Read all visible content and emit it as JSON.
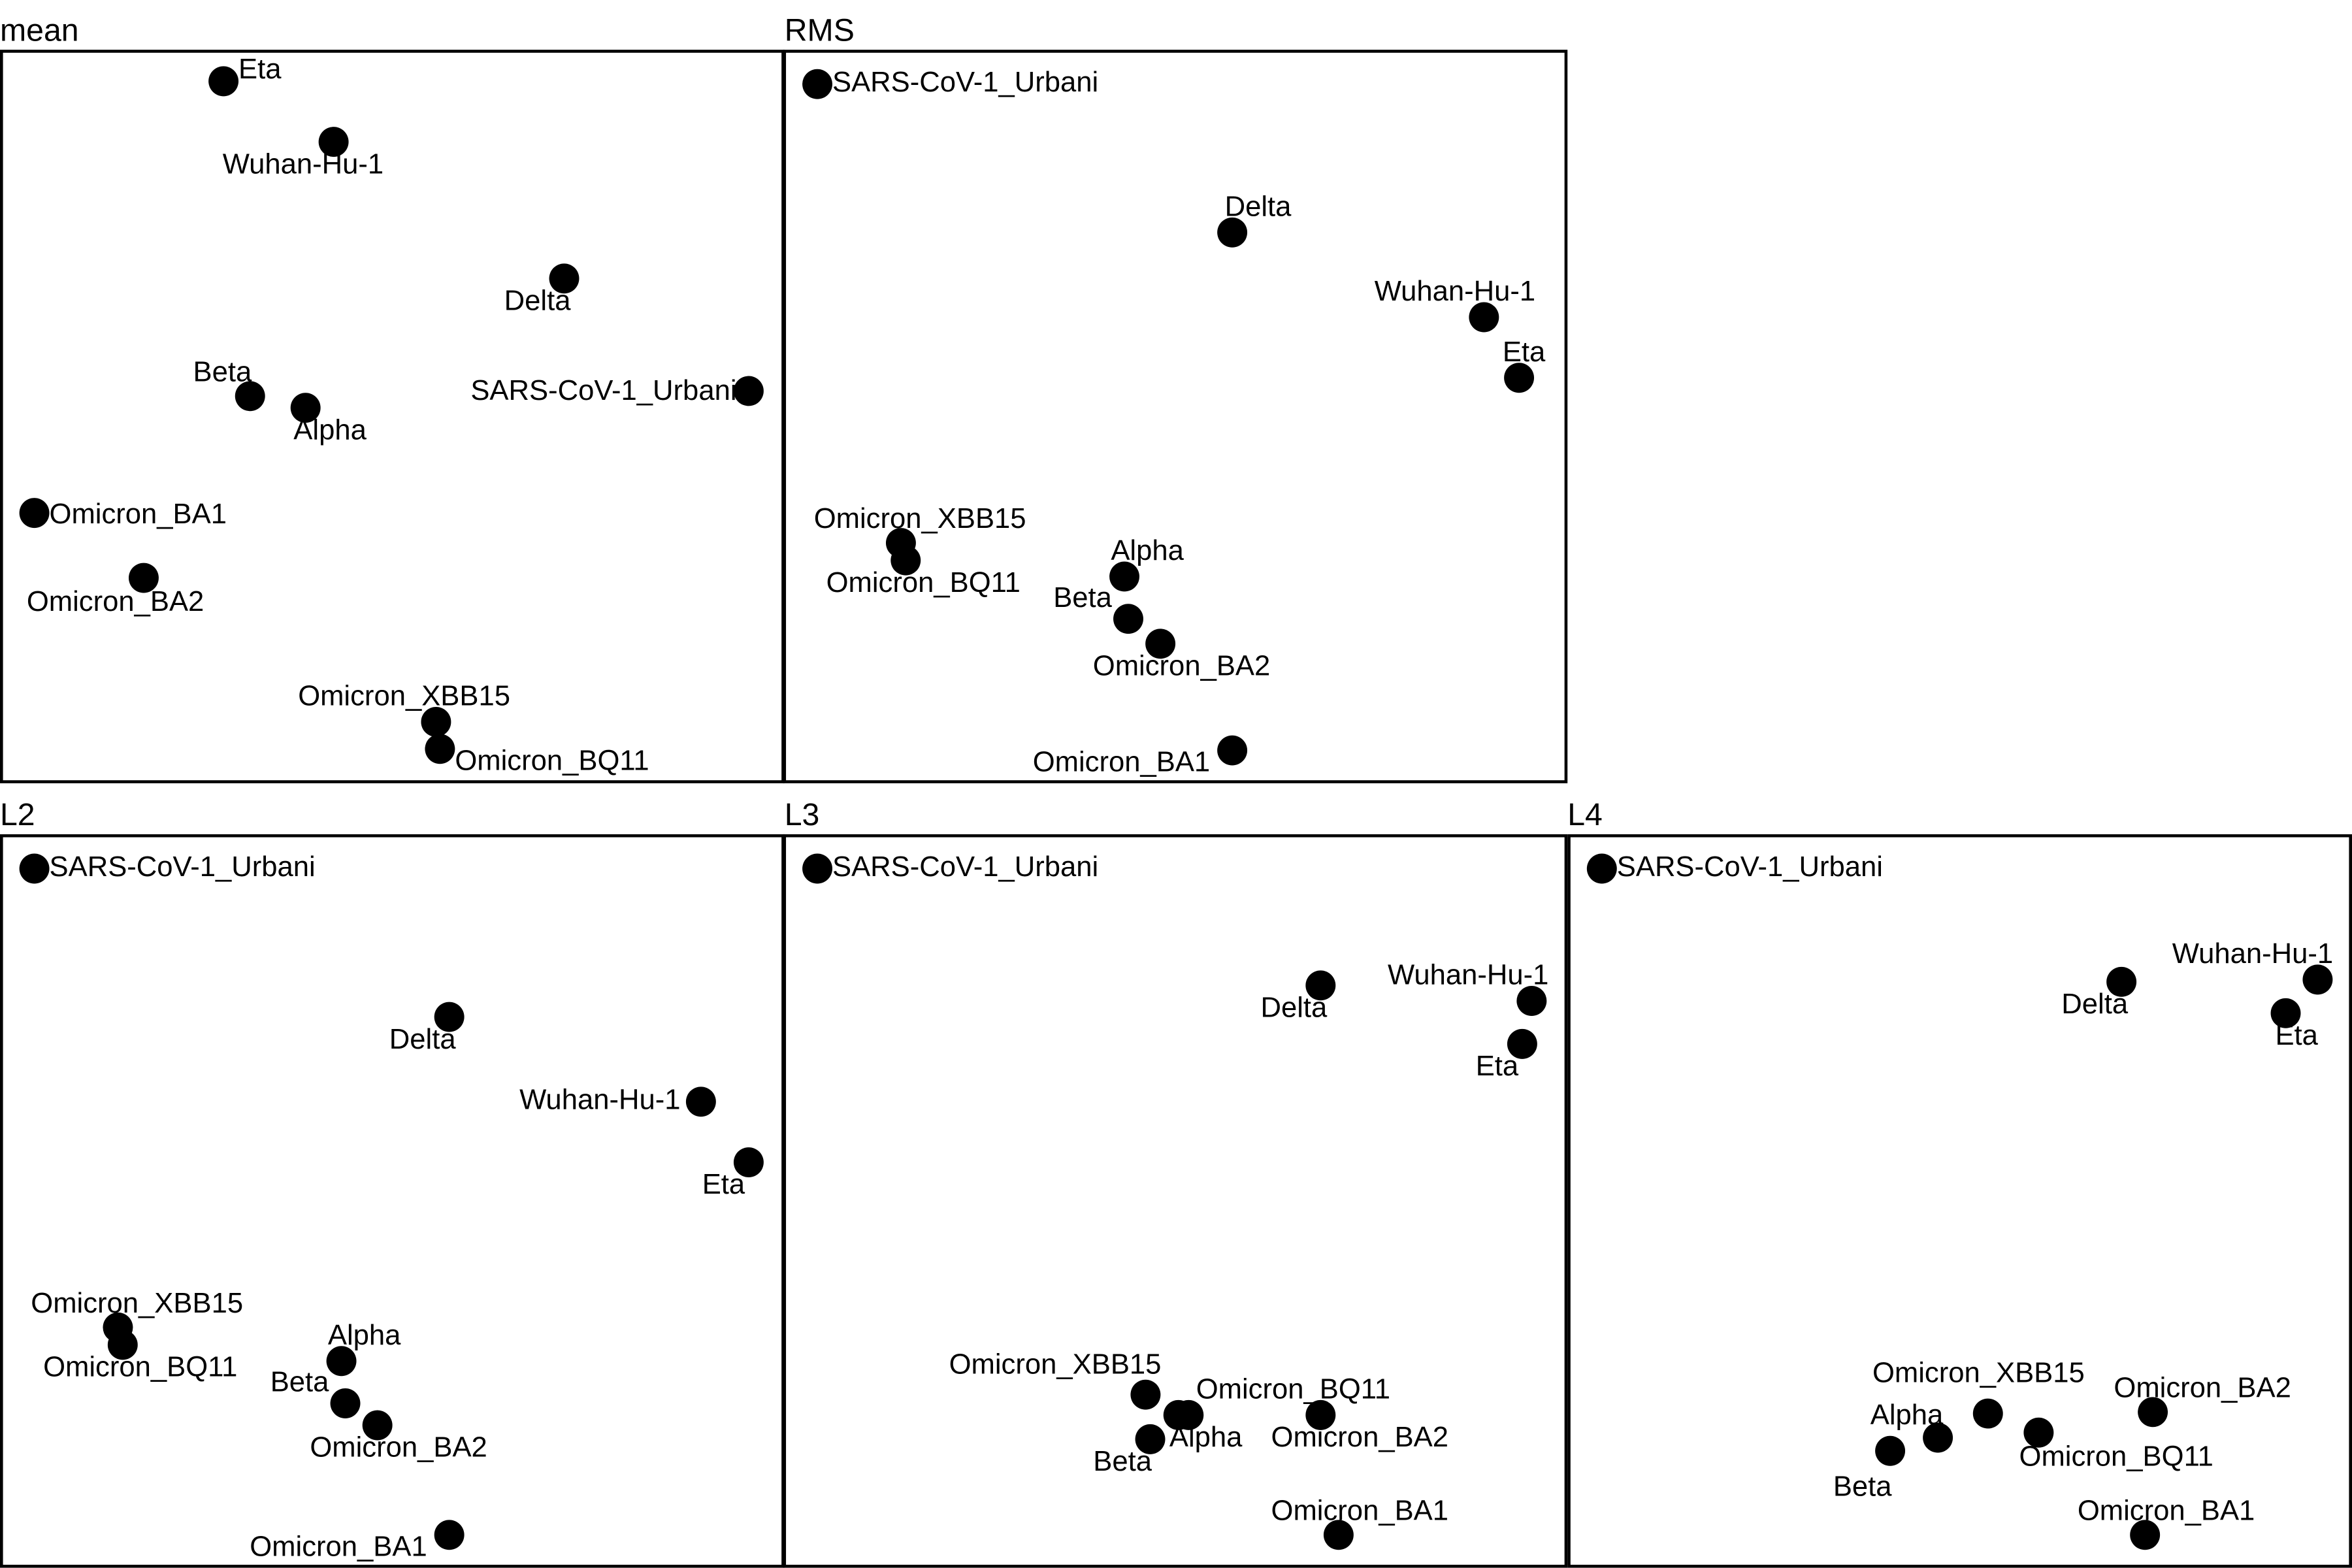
{
  "chart_data": [
    {
      "type": "scatter",
      "title": "mean",
      "xlim": [
        0,
        100
      ],
      "ylim": [
        0,
        100
      ],
      "grid": false,
      "points": [
        {
          "label": "Eta",
          "x": 28.4,
          "y": 95.9
        },
        {
          "label": "Wuhan-Hu-1",
          "x": 42.5,
          "y": 87.6
        },
        {
          "label": "Delta",
          "x": 72.0,
          "y": 68.9
        },
        {
          "label": "Beta",
          "x": 31.8,
          "y": 52.8
        },
        {
          "label": "Alpha",
          "x": 38.9,
          "y": 51.2
        },
        {
          "label": "SARS-CoV-1_Urbani",
          "x": 95.6,
          "y": 53.5
        },
        {
          "label": "Omicron_BA1",
          "x": 4.2,
          "y": 36.8
        },
        {
          "label": "Omicron_BA2",
          "x": 18.2,
          "y": 27.9
        },
        {
          "label": "Omicron_XBB15",
          "x": 55.6,
          "y": 8.2
        },
        {
          "label": "Omicron_BQ11",
          "x": 56.1,
          "y": 4.5
        }
      ]
    },
    {
      "type": "scatter",
      "title": "RMS",
      "xlim": [
        0,
        100
      ],
      "ylim": [
        0,
        100
      ],
      "grid": false,
      "points": [
        {
          "label": "SARS-CoV-1_Urbani",
          "x": 4.2,
          "y": 95.5
        },
        {
          "label": "Delta",
          "x": 57.3,
          "y": 75.2
        },
        {
          "label": "Wuhan-Hu-1",
          "x": 89.5,
          "y": 63.6
        },
        {
          "label": "Eta",
          "x": 94.0,
          "y": 55.3
        },
        {
          "label": "Omicron_XBB15",
          "x": 14.9,
          "y": 32.7
        },
        {
          "label": "Omicron_BQ11",
          "x": 15.5,
          "y": 30.3
        },
        {
          "label": "Alpha",
          "x": 43.5,
          "y": 28.1
        },
        {
          "label": "Beta",
          "x": 44.0,
          "y": 22.3
        },
        {
          "label": "Omicron_BA2",
          "x": 48.1,
          "y": 18.9
        },
        {
          "label": "Omicron_BA1",
          "x": 57.3,
          "y": 4.3
        }
      ]
    },
    {
      "type": "scatter",
      "title": "L2",
      "xlim": [
        0,
        100
      ],
      "ylim": [
        0,
        100
      ],
      "grid": false,
      "points": [
        {
          "label": "SARS-CoV-1_Urbani",
          "x": 4.2,
          "y": 95.5
        },
        {
          "label": "Delta",
          "x": 57.3,
          "y": 75.2
        },
        {
          "label": "Wuhan-Hu-1",
          "x": 89.5,
          "y": 63.6
        },
        {
          "label": "Eta",
          "x": 95.6,
          "y": 55.3
        },
        {
          "label": "Omicron_XBB15",
          "x": 14.9,
          "y": 32.7
        },
        {
          "label": "Omicron_BQ11",
          "x": 15.5,
          "y": 30.3
        },
        {
          "label": "Alpha",
          "x": 43.5,
          "y": 28.1
        },
        {
          "label": "Beta",
          "x": 44.0,
          "y": 22.3
        },
        {
          "label": "Omicron_BA2",
          "x": 48.1,
          "y": 19.3
        },
        {
          "label": "Omicron_BA1",
          "x": 57.3,
          "y": 4.3
        }
      ]
    },
    {
      "type": "scatter",
      "title": "L3",
      "xlim": [
        0,
        100
      ],
      "ylim": [
        0,
        100
      ],
      "grid": false,
      "points": [
        {
          "label": "SARS-CoV-1_Urbani",
          "x": 4.2,
          "y": 95.5
        },
        {
          "label": "Delta",
          "x": 68.6,
          "y": 79.5
        },
        {
          "label": "Wuhan-Hu-1",
          "x": 95.6,
          "y": 77.4
        },
        {
          "label": "Eta",
          "x": 94.4,
          "y": 71.5
        },
        {
          "label": "Omicron_XBB15",
          "x": 46.2,
          "y": 23.5
        },
        {
          "label": "Omicron_BQ11",
          "x": 51.7,
          "y": 20.7
        },
        {
          "label": "Alpha",
          "x": 50.4,
          "y": 20.7
        },
        {
          "label": "Beta",
          "x": 46.8,
          "y": 17.4
        },
        {
          "label": "Omicron_BA2",
          "x": 68.6,
          "y": 20.7
        },
        {
          "label": "Omicron_BA1",
          "x": 70.9,
          "y": 4.3
        }
      ]
    },
    {
      "type": "scatter",
      "title": "L4",
      "xlim": [
        0,
        100
      ],
      "ylim": [
        0,
        100
      ],
      "grid": false,
      "points": [
        {
          "label": "SARS-CoV-1_Urbani",
          "x": 4.2,
          "y": 95.5
        },
        {
          "label": "Delta",
          "x": 70.7,
          "y": 80.0
        },
        {
          "label": "Wuhan-Hu-1",
          "x": 95.8,
          "y": 80.3
        },
        {
          "label": "Eta",
          "x": 91.7,
          "y": 75.7
        },
        {
          "label": "Omicron_XBB15",
          "x": 53.6,
          "y": 20.9
        },
        {
          "label": "Omicron_BQ11",
          "x": 60.1,
          "y": 18.3
        },
        {
          "label": "Alpha",
          "x": 47.2,
          "y": 17.6
        },
        {
          "label": "Beta",
          "x": 41.1,
          "y": 15.8
        },
        {
          "label": "Omicron_BA2",
          "x": 74.7,
          "y": 21.1
        },
        {
          "label": "Omicron_BA1",
          "x": 73.7,
          "y": 4.3
        }
      ]
    }
  ]
}
